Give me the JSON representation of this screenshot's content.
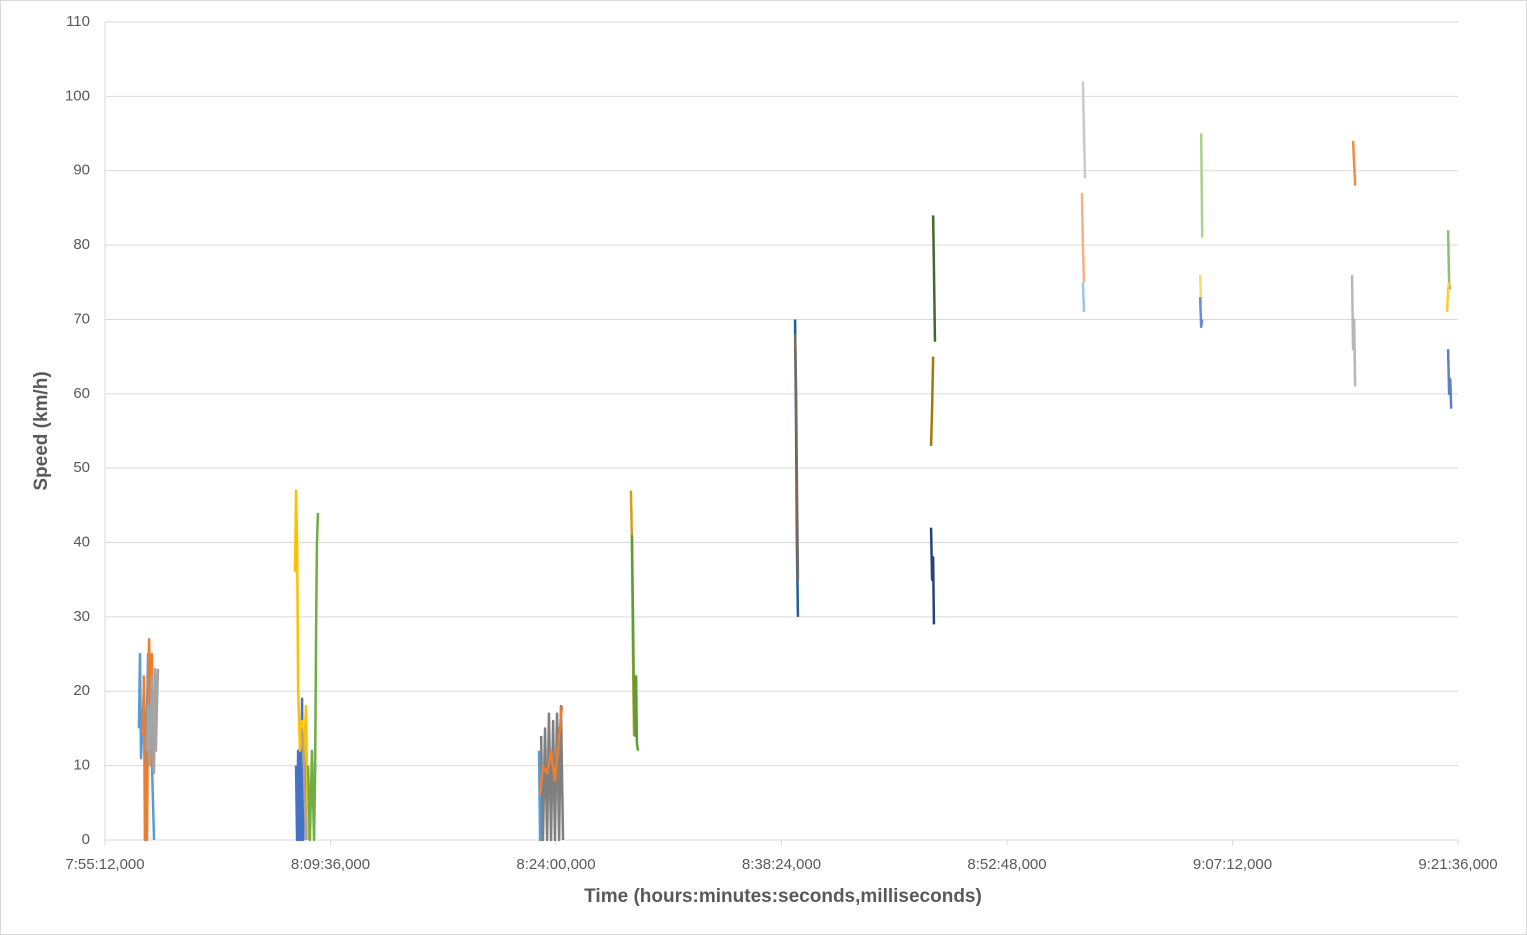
{
  "chart_data": {
    "type": "line",
    "x_label": "Time (hours:minutes:seconds,milliseconds)",
    "y_label": "Speed (km/h)",
    "xlim": [
      28512,
      33696
    ],
    "xticks": [
      {
        "value": 28512,
        "label": "7:55:12,000"
      },
      {
        "value": 29376,
        "label": "8:09:36,000"
      },
      {
        "value": 30240,
        "label": "8:24:00,000"
      },
      {
        "value": 31104,
        "label": "8:38:24,000"
      },
      {
        "value": 31968,
        "label": "8:52:48,000"
      },
      {
        "value": 32832,
        "label": "9:07:12,000"
      },
      {
        "value": 33696,
        "label": "9:21:36,000"
      }
    ],
    "ylim": [
      0,
      110
    ],
    "yticks": [
      0,
      10,
      20,
      30,
      40,
      50,
      60,
      70,
      80,
      90,
      100,
      110
    ],
    "grid": true,
    "series": [
      {
        "color": "#5b9bd5",
        "x": [
          28642,
          28646,
          28650,
          28661,
          28669,
          28677,
          28684,
          28692,
          28700
        ],
        "values": [
          15,
          25,
          11,
          20,
          10,
          25,
          24,
          10,
          0
        ]
      },
      {
        "color": "#ed7d31",
        "x": [
          28658,
          28661,
          28665,
          28669,
          28673,
          28677,
          28681,
          28684,
          28688,
          28692,
          28696
        ],
        "values": [
          14,
          22,
          0,
          10,
          0,
          20,
          27,
          22,
          12,
          25,
          10
        ]
      },
      {
        "color": "#a5a5a5",
        "x": [
          28673,
          28677,
          28684,
          28692,
          28700,
          28704,
          28707,
          28711,
          28715
        ],
        "values": [
          12,
          18,
          10,
          22,
          9,
          23,
          12,
          18,
          23
        ]
      },
      {
        "color": "#4472c4",
        "x": [
          29244,
          29248,
          29252,
          29256,
          29259,
          29263,
          29267,
          29271,
          29274,
          29282
        ],
        "values": [
          10,
          0,
          12,
          0,
          15,
          0,
          19,
          0,
          14,
          0
        ]
      },
      {
        "color": "#ffc000",
        "x": [
          29240,
          29244,
          29248,
          29252,
          29259,
          29267,
          29274,
          29282,
          29290
        ],
        "values": [
          36,
          47,
          40,
          20,
          12,
          16,
          10,
          18,
          0
        ]
      },
      {
        "color": "#70ad47",
        "x": [
          29290,
          29297,
          29305,
          29313,
          29317,
          29321,
          29324,
          29328
        ],
        "values": [
          10,
          0,
          12,
          0,
          9,
          29,
          40,
          44
        ]
      },
      {
        "color": "#a5a5a5",
        "x": [
          29267,
          29274,
          29282
        ],
        "values": [
          15,
          10,
          0
        ]
      },
      {
        "color": "#5b9bd5",
        "x": [
          30175,
          30179,
          30183,
          30187,
          30190
        ],
        "values": [
          12,
          0,
          10,
          0,
          8
        ]
      },
      {
        "color": "#7f7f7f",
        "x": [
          30183,
          30190,
          30198,
          30206,
          30213,
          30221,
          30229,
          30236,
          30244,
          30252,
          30259,
          30267
        ],
        "values": [
          14,
          0,
          15,
          0,
          17,
          0,
          16,
          0,
          17,
          0,
          18,
          0
        ]
      },
      {
        "color": "#ed7d31",
        "x": [
          30179,
          30190,
          30206,
          30221,
          30236,
          30252,
          30263
        ],
        "values": [
          6,
          10,
          9,
          12,
          8,
          14,
          18
        ]
      },
      {
        "color": "#d4a017",
        "x": [
          30527,
          30531,
          30535,
          30539
        ],
        "values": [
          47,
          40,
          25,
          14
        ]
      },
      {
        "color": "#5f9e35",
        "x": [
          30531,
          30535,
          30539,
          30543,
          30547,
          30550,
          30554
        ],
        "values": [
          41,
          30,
          18,
          14,
          22,
          13,
          12
        ]
      },
      {
        "color": "#255e91",
        "x": [
          31156,
          31160,
          31163,
          31167
        ],
        "values": [
          70,
          55,
          40,
          30
        ]
      },
      {
        "color": "#7a6a5a",
        "x": [
          31156,
          31160,
          31163,
          31167
        ],
        "values": [
          68,
          60,
          48,
          35
        ]
      },
      {
        "color": "#43682b",
        "x": [
          31685,
          31688,
          31692
        ],
        "values": [
          84,
          77,
          67
        ]
      },
      {
        "color": "#9e7c0c",
        "x": [
          31677,
          31681,
          31685
        ],
        "values": [
          53,
          58,
          65
        ]
      },
      {
        "color": "#264478",
        "x": [
          31677,
          31681,
          31685,
          31688
        ],
        "values": [
          42,
          35,
          38,
          29
        ]
      },
      {
        "color": "#c9c9c9",
        "x": [
          32259,
          32263,
          32267
        ],
        "values": [
          102,
          95,
          89
        ]
      },
      {
        "color": "#f4b183",
        "x": [
          32255,
          32259,
          32263
        ],
        "values": [
          87,
          80,
          75
        ]
      },
      {
        "color": "#9dc3e6",
        "x": [
          32259,
          32263
        ],
        "values": [
          75,
          71
        ]
      },
      {
        "color": "#a9d18e",
        "x": [
          32712,
          32716
        ],
        "values": [
          95,
          81
        ]
      },
      {
        "color": "#ffd966",
        "x": [
          32708,
          32712
        ],
        "values": [
          76,
          72
        ]
      },
      {
        "color": "#698ed0",
        "x": [
          32708,
          32712,
          32716
        ],
        "values": [
          73,
          69,
          70
        ]
      },
      {
        "color": "#f08a45",
        "x": [
          33294,
          33298,
          33302
        ],
        "values": [
          94,
          91,
          88
        ]
      },
      {
        "color": "#b7b7b7",
        "x": [
          33290,
          33294,
          33298,
          33302
        ],
        "values": [
          76,
          66,
          70,
          61
        ]
      },
      {
        "color": "#8cc168",
        "x": [
          33658,
          33662,
          33666
        ],
        "values": [
          82,
          75,
          74
        ]
      },
      {
        "color": "#ffcd33",
        "x": [
          33654,
          33658,
          33662
        ],
        "values": [
          71,
          74,
          75
        ]
      },
      {
        "color": "#5a80c8",
        "x": [
          33658,
          33662,
          33666,
          33670
        ],
        "values": [
          66,
          60,
          62,
          58
        ]
      }
    ]
  }
}
